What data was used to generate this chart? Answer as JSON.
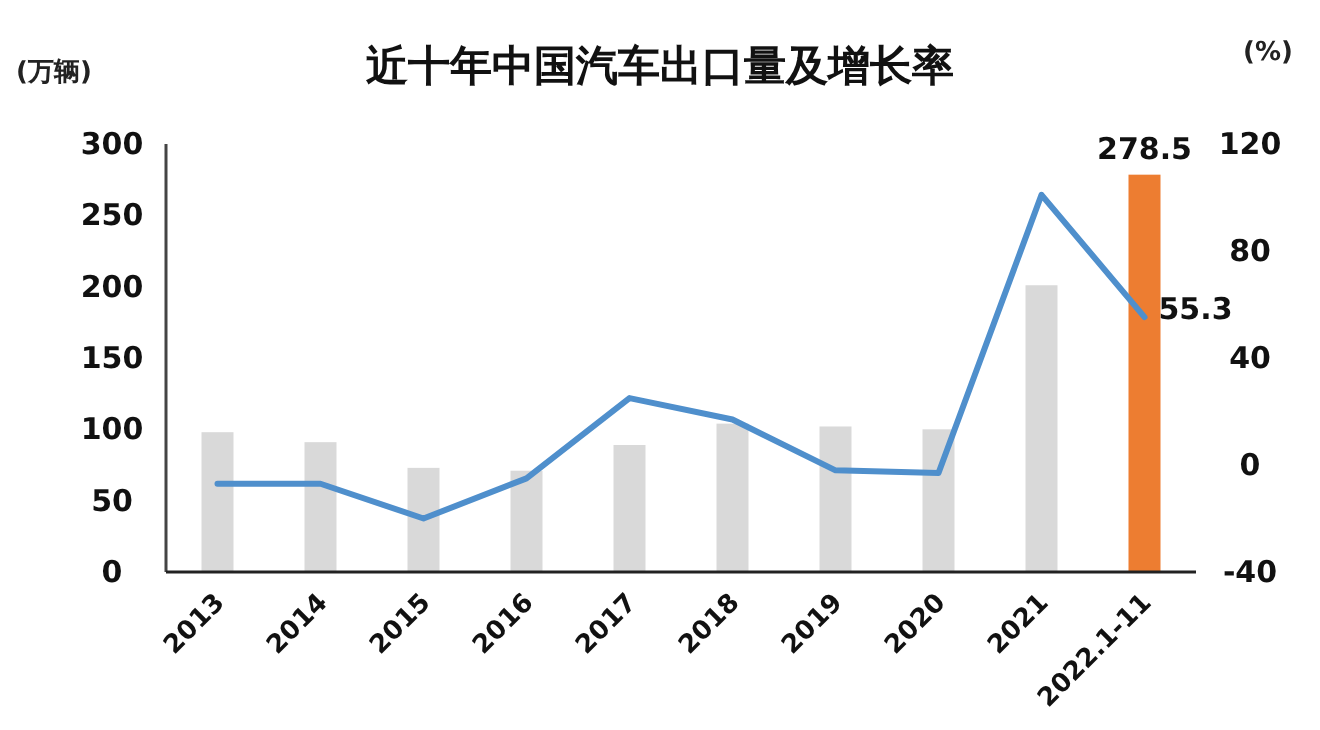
{
  "chart_data": {
    "type": "bar",
    "title": "近十年中国汽车出口量及增长率",
    "ylabel": "(万辆)",
    "y2label": "(%)",
    "categories": [
      "2013",
      "2014",
      "2015",
      "2016",
      "2017",
      "2018",
      "2019",
      "2020",
      "2021",
      "2022.1-11"
    ],
    "series": [
      {
        "colors": [
          "#d9d9d9",
          "#d9d9d9",
          "#d9d9d9",
          "#d9d9d9",
          "#d9d9d9",
          "#d9d9d9",
          "#d9d9d9",
          "#d9d9d9",
          "#d9d9d9",
          "#ed7d31"
        ],
        "values": [
          98,
          91,
          73,
          71,
          89,
          104,
          102,
          100,
          201,
          278.5
        ],
        "value_labels": [
          null,
          null,
          null,
          null,
          null,
          null,
          null,
          null,
          null,
          "278.5"
        ]
      },
      {
        "type": "line",
        "axis": "y2",
        "color": "#4f8fcc",
        "values": [
          -7,
          -7,
          -20,
          -5,
          25,
          17,
          -2,
          -3,
          101,
          55.3
        ],
        "value_labels": [
          null,
          null,
          null,
          null,
          null,
          null,
          null,
          null,
          null,
          "55.3"
        ]
      }
    ],
    "ylim": [
      0,
      300
    ],
    "yticks": [
      0,
      50,
      100,
      150,
      200,
      250,
      300
    ],
    "y2lim": [
      -40,
      120
    ],
    "y2ticks": [
      -40,
      0,
      40,
      80,
      120
    ],
    "grid": false
  }
}
